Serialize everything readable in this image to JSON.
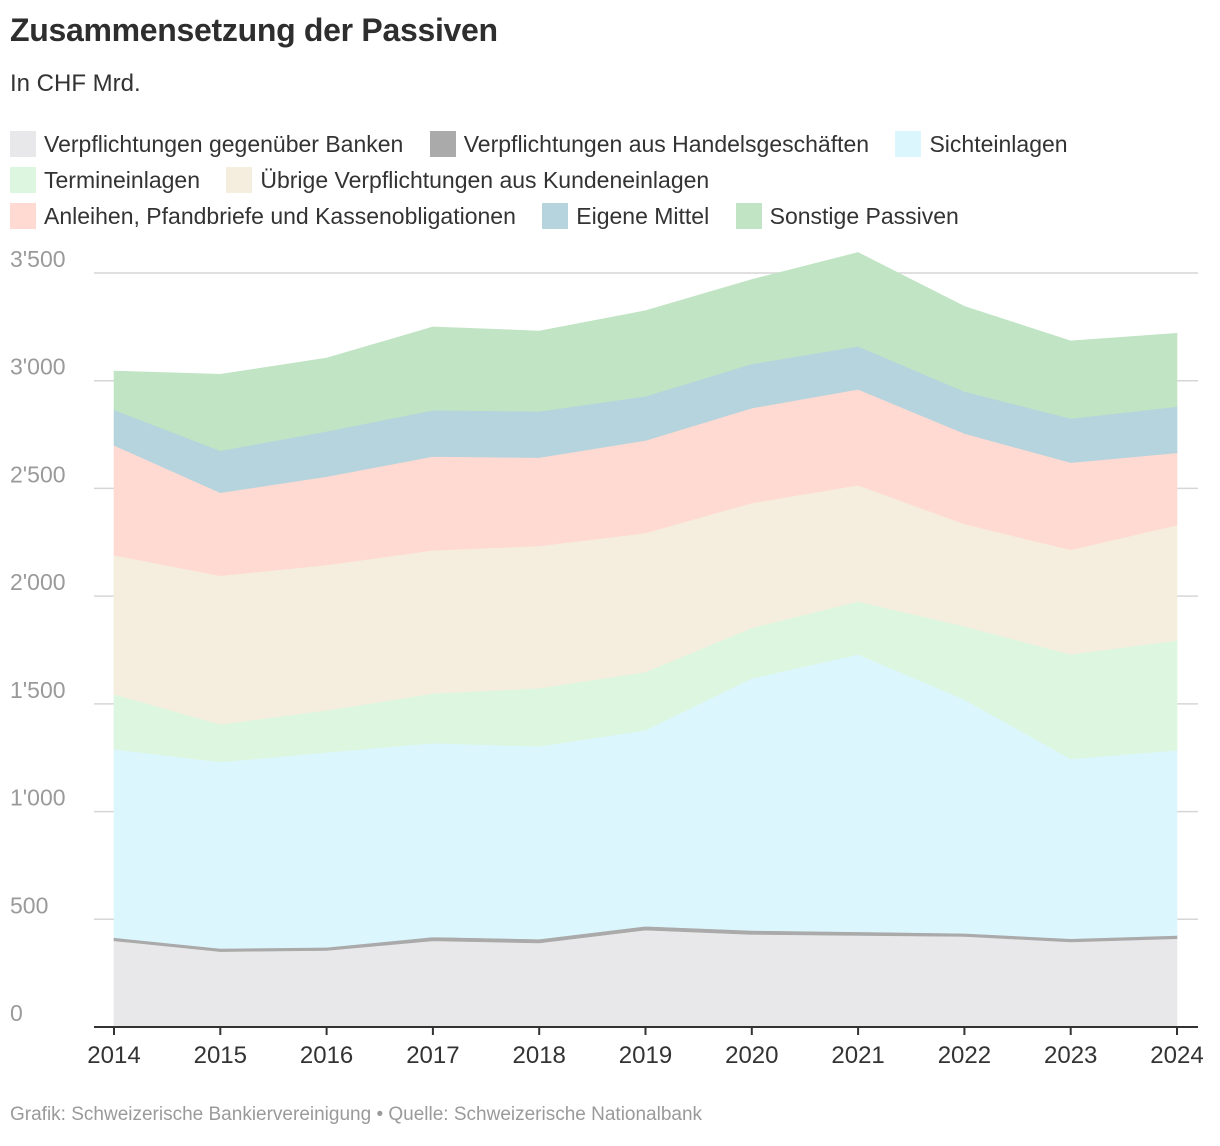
{
  "chart_data": {
    "type": "area",
    "stacked": true,
    "title": "Zusammensetzung der Passiven",
    "subtitle": "In CHF Mrd.",
    "footer": "Grafik: Schweizerische Bankiervereinigung • Quelle: Schweizerische Nationalbank",
    "x": [
      "2014",
      "2015",
      "2016",
      "2017",
      "2018",
      "2019",
      "2020",
      "2021",
      "2022",
      "2023",
      "2024"
    ],
    "ylim": [
      0,
      3500
    ],
    "yticks": [
      0,
      500,
      1000,
      1500,
      2000,
      2500,
      3000,
      3500
    ],
    "ytick_labels": [
      "0",
      "500",
      "1'000",
      "1'500",
      "2'000",
      "2'500",
      "3'000",
      "3'500"
    ],
    "grid": true,
    "legend_position": "top",
    "series": [
      {
        "name": "Verpflichtungen gegenüber Banken",
        "color": "#e8e8ea",
        "values": [
          400,
          350,
          355,
          400,
          390,
          450,
          430,
          425,
          420,
          395,
          410
        ]
      },
      {
        "name": "Verpflichtungen aus Handelsgeschäften",
        "color": "#aaaaaa",
        "values": [
          15,
          15,
          15,
          18,
          18,
          18,
          18,
          17,
          15,
          15,
          15
        ]
      },
      {
        "name": "Sichteinlagen",
        "color": "#dcf6fd",
        "values": [
          875,
          865,
          905,
          900,
          895,
          910,
          1170,
          1288,
          1085,
          835,
          860
        ]
      },
      {
        "name": "Termineinlagen",
        "color": "#dcf6df",
        "values": [
          255,
          175,
          195,
          230,
          270,
          270,
          235,
          245,
          340,
          485,
          510
        ]
      },
      {
        "name": "Übrige Verpflichtungen aus Kundeneinlagen",
        "color": "#f5eede",
        "values": [
          645,
          690,
          675,
          665,
          660,
          645,
          580,
          540,
          475,
          485,
          535
        ]
      },
      {
        "name": "Anleihen, Pfandbriefe und Kassenobligationen",
        "color": "#ffdad2",
        "values": [
          510,
          385,
          410,
          435,
          410,
          430,
          440,
          445,
          420,
          405,
          335
        ]
      },
      {
        "name": "Eigene Mittel",
        "color": "#b5d4dd",
        "values": [
          165,
          195,
          210,
          215,
          215,
          205,
          205,
          200,
          195,
          205,
          215
        ]
      },
      {
        "name": "Sonstige Passiven",
        "color": "#c0e4c4",
        "values": [
          180,
          355,
          340,
          387,
          373,
          397,
          392,
          435,
          395,
          360,
          340
        ]
      }
    ]
  }
}
